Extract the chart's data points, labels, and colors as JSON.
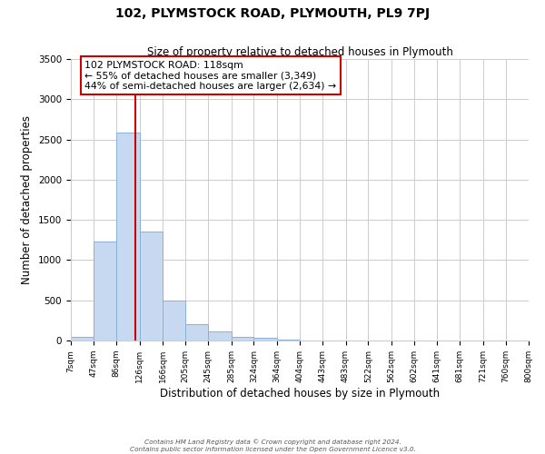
{
  "title": "102, PLYMSTOCK ROAD, PLYMOUTH, PL9 7PJ",
  "subtitle": "Size of property relative to detached houses in Plymouth",
  "xlabel": "Distribution of detached houses by size in Plymouth",
  "ylabel": "Number of detached properties",
  "bar_labels": [
    "7sqm",
    "47sqm",
    "86sqm",
    "126sqm",
    "166sqm",
    "205sqm",
    "245sqm",
    "285sqm",
    "324sqm",
    "364sqm",
    "404sqm",
    "443sqm",
    "483sqm",
    "522sqm",
    "562sqm",
    "602sqm",
    "641sqm",
    "681sqm",
    "721sqm",
    "760sqm",
    "800sqm"
  ],
  "bar_values": [
    40,
    1230,
    2580,
    1350,
    500,
    200,
    110,
    50,
    30,
    15,
    5,
    2,
    1,
    0,
    0,
    0,
    0,
    0,
    0,
    0,
    0
  ],
  "bar_color": "#c6d9f0",
  "bar_edgecolor": "#8ab0d4",
  "vline_x": 118,
  "vline_color": "#cc0000",
  "ylim": [
    0,
    3500
  ],
  "annotation_title": "102 PLYMSTOCK ROAD: 118sqm",
  "annotation_line1": "← 55% of detached houses are smaller (3,349)",
  "annotation_line2": "44% of semi-detached houses are larger (2,634) →",
  "annotation_box_color": "#ffffff",
  "annotation_box_edgecolor": "#cc0000",
  "footer1": "Contains HM Land Registry data © Crown copyright and database right 2024.",
  "footer2": "Contains public sector information licensed under the Open Government Licence v3.0.",
  "bin_edges": [
    7,
    47,
    86,
    126,
    166,
    205,
    245,
    285,
    324,
    364,
    404,
    443,
    483,
    522,
    562,
    602,
    641,
    681,
    721,
    760,
    800
  ],
  "background_color": "#ffffff",
  "grid_color": "#cccccc"
}
